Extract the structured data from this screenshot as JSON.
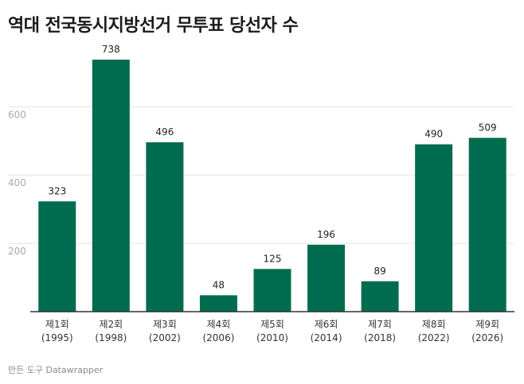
{
  "title": "역대 전국동시지방선거 무투표 당선자 수",
  "footer": "만든 도구 Datawrapper",
  "colors": {
    "bar": "#006c4f",
    "grid": "#e4e4e4",
    "axis": "#333333",
    "tick_text": "#aaaaaa"
  },
  "chart_data": {
    "type": "bar",
    "title": "역대 전국동시지방선거 무투표 당선자 수",
    "xlabel": "",
    "ylabel": "",
    "categories": [
      [
        "제1회",
        "(1995)"
      ],
      [
        "제2회",
        "(1998)"
      ],
      [
        "제3회",
        "(2002)"
      ],
      [
        "제4회",
        "(2006)"
      ],
      [
        "제5회",
        "(2010)"
      ],
      [
        "제6회",
        "(2014)"
      ],
      [
        "제7회",
        "(2018)"
      ],
      [
        "제8회",
        "(2022)"
      ],
      [
        "제9회",
        "(2026)"
      ]
    ],
    "values": [
      323,
      738,
      496,
      48,
      125,
      196,
      89,
      490,
      509
    ],
    "yticks": [
      200,
      400,
      600
    ],
    "ylim": [
      0,
      738
    ],
    "grid": true,
    "legend": "none"
  }
}
